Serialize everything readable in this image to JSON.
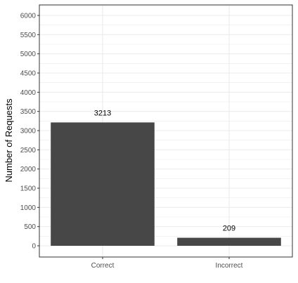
{
  "chart_data": {
    "type": "bar",
    "categories": [
      "Correct",
      "Incorrect"
    ],
    "values": [
      3213,
      209
    ],
    "data_labels": [
      "3213",
      "209"
    ],
    "title": "",
    "xlabel": "",
    "ylabel": "Number of Requests",
    "ylim": [
      0,
      6000
    ],
    "yticks": [
      0,
      500,
      1000,
      1500,
      2000,
      2500,
      3000,
      3500,
      4000,
      4500,
      5000,
      5500,
      6000
    ],
    "ytick_labels": [
      "0",
      "500",
      "1000",
      "1500",
      "2000",
      "2500",
      "3000",
      "3500",
      "4000",
      "4500",
      "5000",
      "5500",
      "6000"
    ],
    "grid": true,
    "legend": "none",
    "bar_color": "#474747",
    "grid_color": "#ebebeb",
    "panel_border_color": "#333333",
    "background_color": "#ffffff"
  }
}
